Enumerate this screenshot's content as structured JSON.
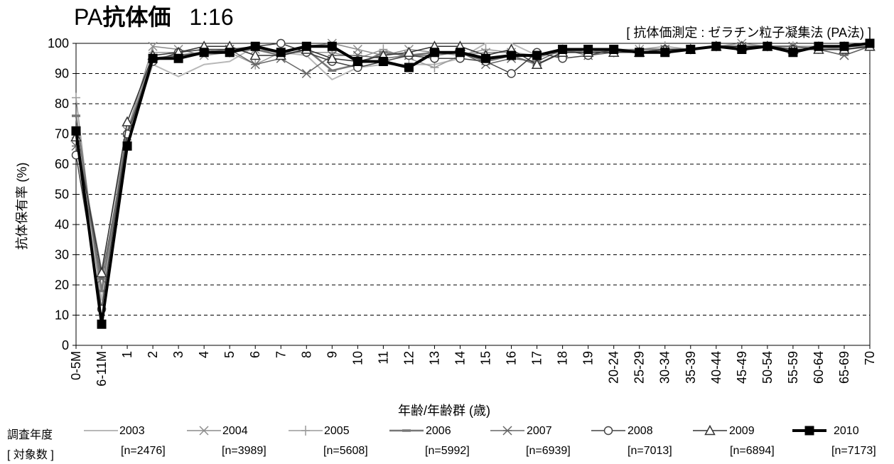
{
  "header": {
    "title_prefix": "PA",
    "title_bold": "抗体価",
    "title_ratio": "1:16",
    "subtitle": "[ 抗体価測定 : ゼラチン粒子凝集法 (PA法) ]"
  },
  "legend": {
    "title": "調査年度",
    "subtitle": "[ 対象数 ]"
  },
  "chart_data": {
    "type": "line",
    "xlabel": "年齢/年齢群 (歳)",
    "ylabel": "抗体保有率 (%)",
    "ylim": [
      0,
      100
    ],
    "yticks": [
      "0",
      "10",
      "20",
      "30",
      "40",
      "50",
      "60",
      "70",
      "80",
      "90",
      "100"
    ],
    "grid": "horizontal dashed",
    "categories": [
      "0-5M",
      "6-11M",
      "1",
      "2",
      "3",
      "4",
      "5",
      "6",
      "7",
      "8",
      "9",
      "10",
      "11",
      "12",
      "13",
      "14",
      "15",
      "16",
      "17",
      "18",
      "19",
      "20-24",
      "25-29",
      "30-34",
      "35-39",
      "40-44",
      "45-49",
      "50-54",
      "55-59",
      "60-64",
      "65-69",
      "70"
    ],
    "series": [
      {
        "name": "2003",
        "n": "[n=2476]",
        "color": "#b8b8b8",
        "marker": "none",
        "width": 2,
        "values": [
          70,
          15,
          68,
          93,
          89,
          93,
          94,
          99,
          97,
          96,
          88,
          92,
          93,
          93,
          93,
          95,
          100,
          100,
          96,
          97,
          97,
          98,
          97,
          98,
          98,
          99,
          99,
          99,
          99,
          99,
          98,
          99
        ]
      },
      {
        "name": "2004",
        "n": "[n=3989]",
        "color": "#8c8c8c",
        "marker": "x",
        "width": 1.5,
        "values": [
          70,
          25,
          71,
          99,
          98,
          96,
          97,
          98,
          97,
          99,
          100,
          98,
          96,
          98,
          97,
          96,
          97,
          97,
          96,
          97,
          97,
          98,
          98,
          98,
          98,
          99,
          100,
          99,
          99,
          98,
          96,
          99
        ]
      },
      {
        "name": "2005",
        "n": "[n=5608]",
        "color": "#9a9a9a",
        "marker": "plus",
        "width": 1.5,
        "values": [
          82,
          12,
          70,
          97,
          97,
          98,
          97,
          93,
          97,
          97,
          97,
          95,
          98,
          95,
          92,
          96,
          98,
          97,
          95,
          98,
          97,
          97,
          98,
          99,
          98,
          99,
          99,
          99,
          99,
          99,
          99,
          99
        ]
      },
      {
        "name": "2006",
        "n": "[n=5992]",
        "color": "#777777",
        "marker": "dash",
        "width": 2.5,
        "values": [
          76,
          18,
          70,
          95,
          96,
          97,
          98,
          98,
          96,
          98,
          91,
          93,
          97,
          96,
          97,
          97,
          94,
          96,
          93,
          97,
          98,
          97,
          98,
          98,
          98,
          99,
          99,
          99,
          99,
          98,
          98,
          99
        ]
      },
      {
        "name": "2007",
        "n": "[n=6939]",
        "color": "#666666",
        "marker": "asterisk",
        "width": 1.5,
        "values": [
          66,
          22,
          68,
          95,
          96,
          97,
          98,
          93,
          95,
          90,
          96,
          96,
          95,
          96,
          96,
          97,
          93,
          95,
          94,
          98,
          96,
          97,
          97,
          98,
          98,
          99,
          99,
          99,
          99,
          98,
          96,
          99
        ]
      },
      {
        "name": "2008",
        "n": "[n=7013]",
        "color": "#444444",
        "marker": "circle",
        "width": 1.5,
        "values": [
          63,
          12,
          70,
          94,
          97,
          98,
          98,
          99,
          100,
          97,
          94,
          92,
          94,
          96,
          95,
          95,
          94,
          90,
          97,
          95,
          96,
          98,
          97,
          98,
          98,
          99,
          99,
          99,
          98,
          98,
          98,
          99
        ]
      },
      {
        "name": "2009",
        "n": "[n=6894]",
        "color": "#333333",
        "marker": "triangle",
        "width": 1.5,
        "values": [
          69,
          24,
          74,
          96,
          97,
          99,
          99,
          96,
          96,
          98,
          95,
          94,
          96,
          97,
          99,
          99,
          96,
          98,
          93,
          97,
          97,
          97,
          97,
          98,
          98,
          99,
          99,
          99,
          98,
          98,
          98,
          99
        ]
      },
      {
        "name": "2010",
        "n": "[n=7173]",
        "color": "#000000",
        "marker": "square",
        "width": 4,
        "values": [
          71,
          7,
          66,
          95,
          95,
          97,
          97,
          99,
          97,
          99,
          99,
          94,
          94,
          92,
          97,
          97,
          95,
          96,
          96,
          98,
          98,
          98,
          97,
          97,
          98,
          99,
          98,
          99,
          97,
          99,
          99,
          100
        ]
      }
    ]
  }
}
